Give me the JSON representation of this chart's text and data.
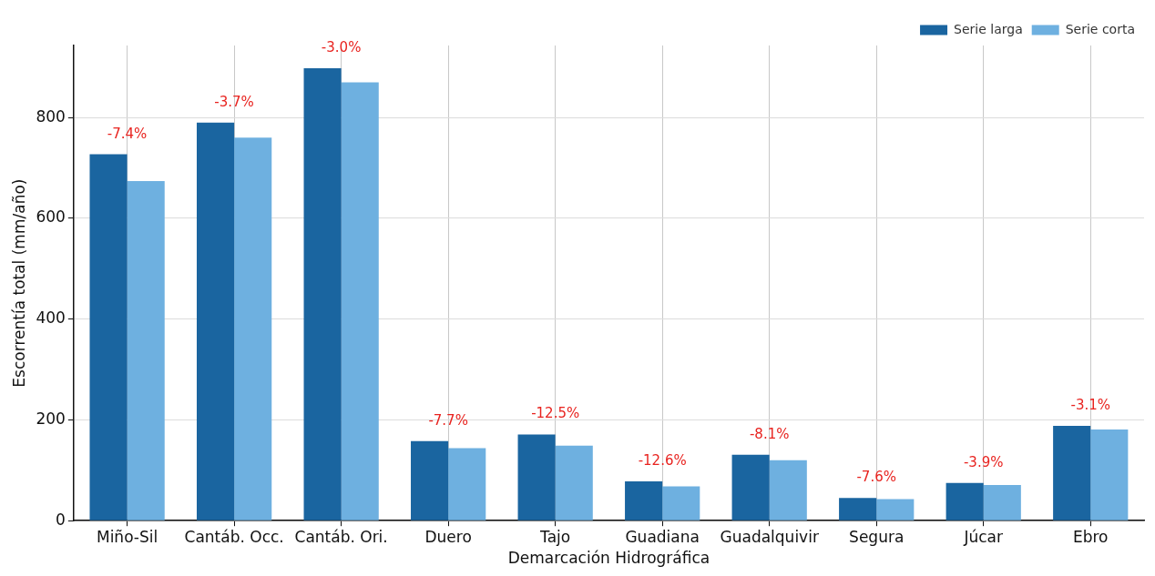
{
  "chart_data": {
    "type": "bar",
    "xlabel": "Demarcación Hidrográfica",
    "ylabel": "Escorrentía total (mm/año)",
    "categories": [
      "Miño-Sil",
      "Cantáb. Occ.",
      "Cantáb. Ori.",
      "Duero",
      "Tajo",
      "Guadiana",
      "Guadalquivir",
      "Segura",
      "Júcar",
      "Ebro"
    ],
    "series": [
      {
        "name": "Serie larga",
        "color": "#1a65a0",
        "values": [
          727,
          790,
          898,
          158,
          171,
          78,
          131,
          45,
          75,
          188
        ]
      },
      {
        "name": "Serie corta",
        "color": "#6eb0e0",
        "values": [
          674,
          760,
          870,
          144,
          149,
          68,
          120,
          43,
          71,
          181
        ]
      }
    ],
    "ylim": [
      0,
      943
    ],
    "yticks": [
      0,
      200,
      400,
      600,
      800
    ],
    "grid": true,
    "legend": "top right",
    "annotations": [
      "-7.4%",
      "-3.7%",
      "-3.0%",
      "-7.7%",
      "-12.5%",
      "-12.6%",
      "-8.1%",
      "-7.6%",
      "-3.9%",
      "-3.1%"
    ]
  }
}
